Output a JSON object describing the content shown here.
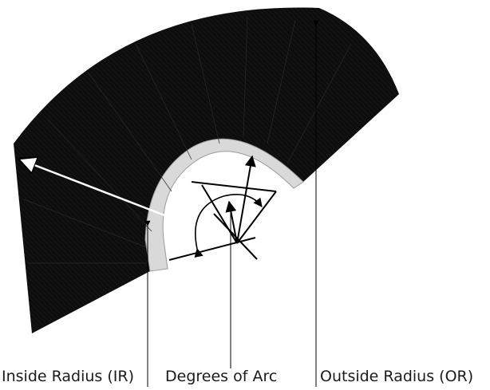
{
  "labels": {
    "inside_radius": "Inside Radius (IR)",
    "degrees_of_arc": "Degrees of Arc",
    "outside_radius": "Outside Radius (OR)"
  },
  "colors": {
    "bristle": "#0d0d0d",
    "ring": "#d9d9d9",
    "ring_edge": "#9a9a9a",
    "line": "#000000",
    "arrow_white": "#ffffff",
    "background": "#ffffff"
  }
}
